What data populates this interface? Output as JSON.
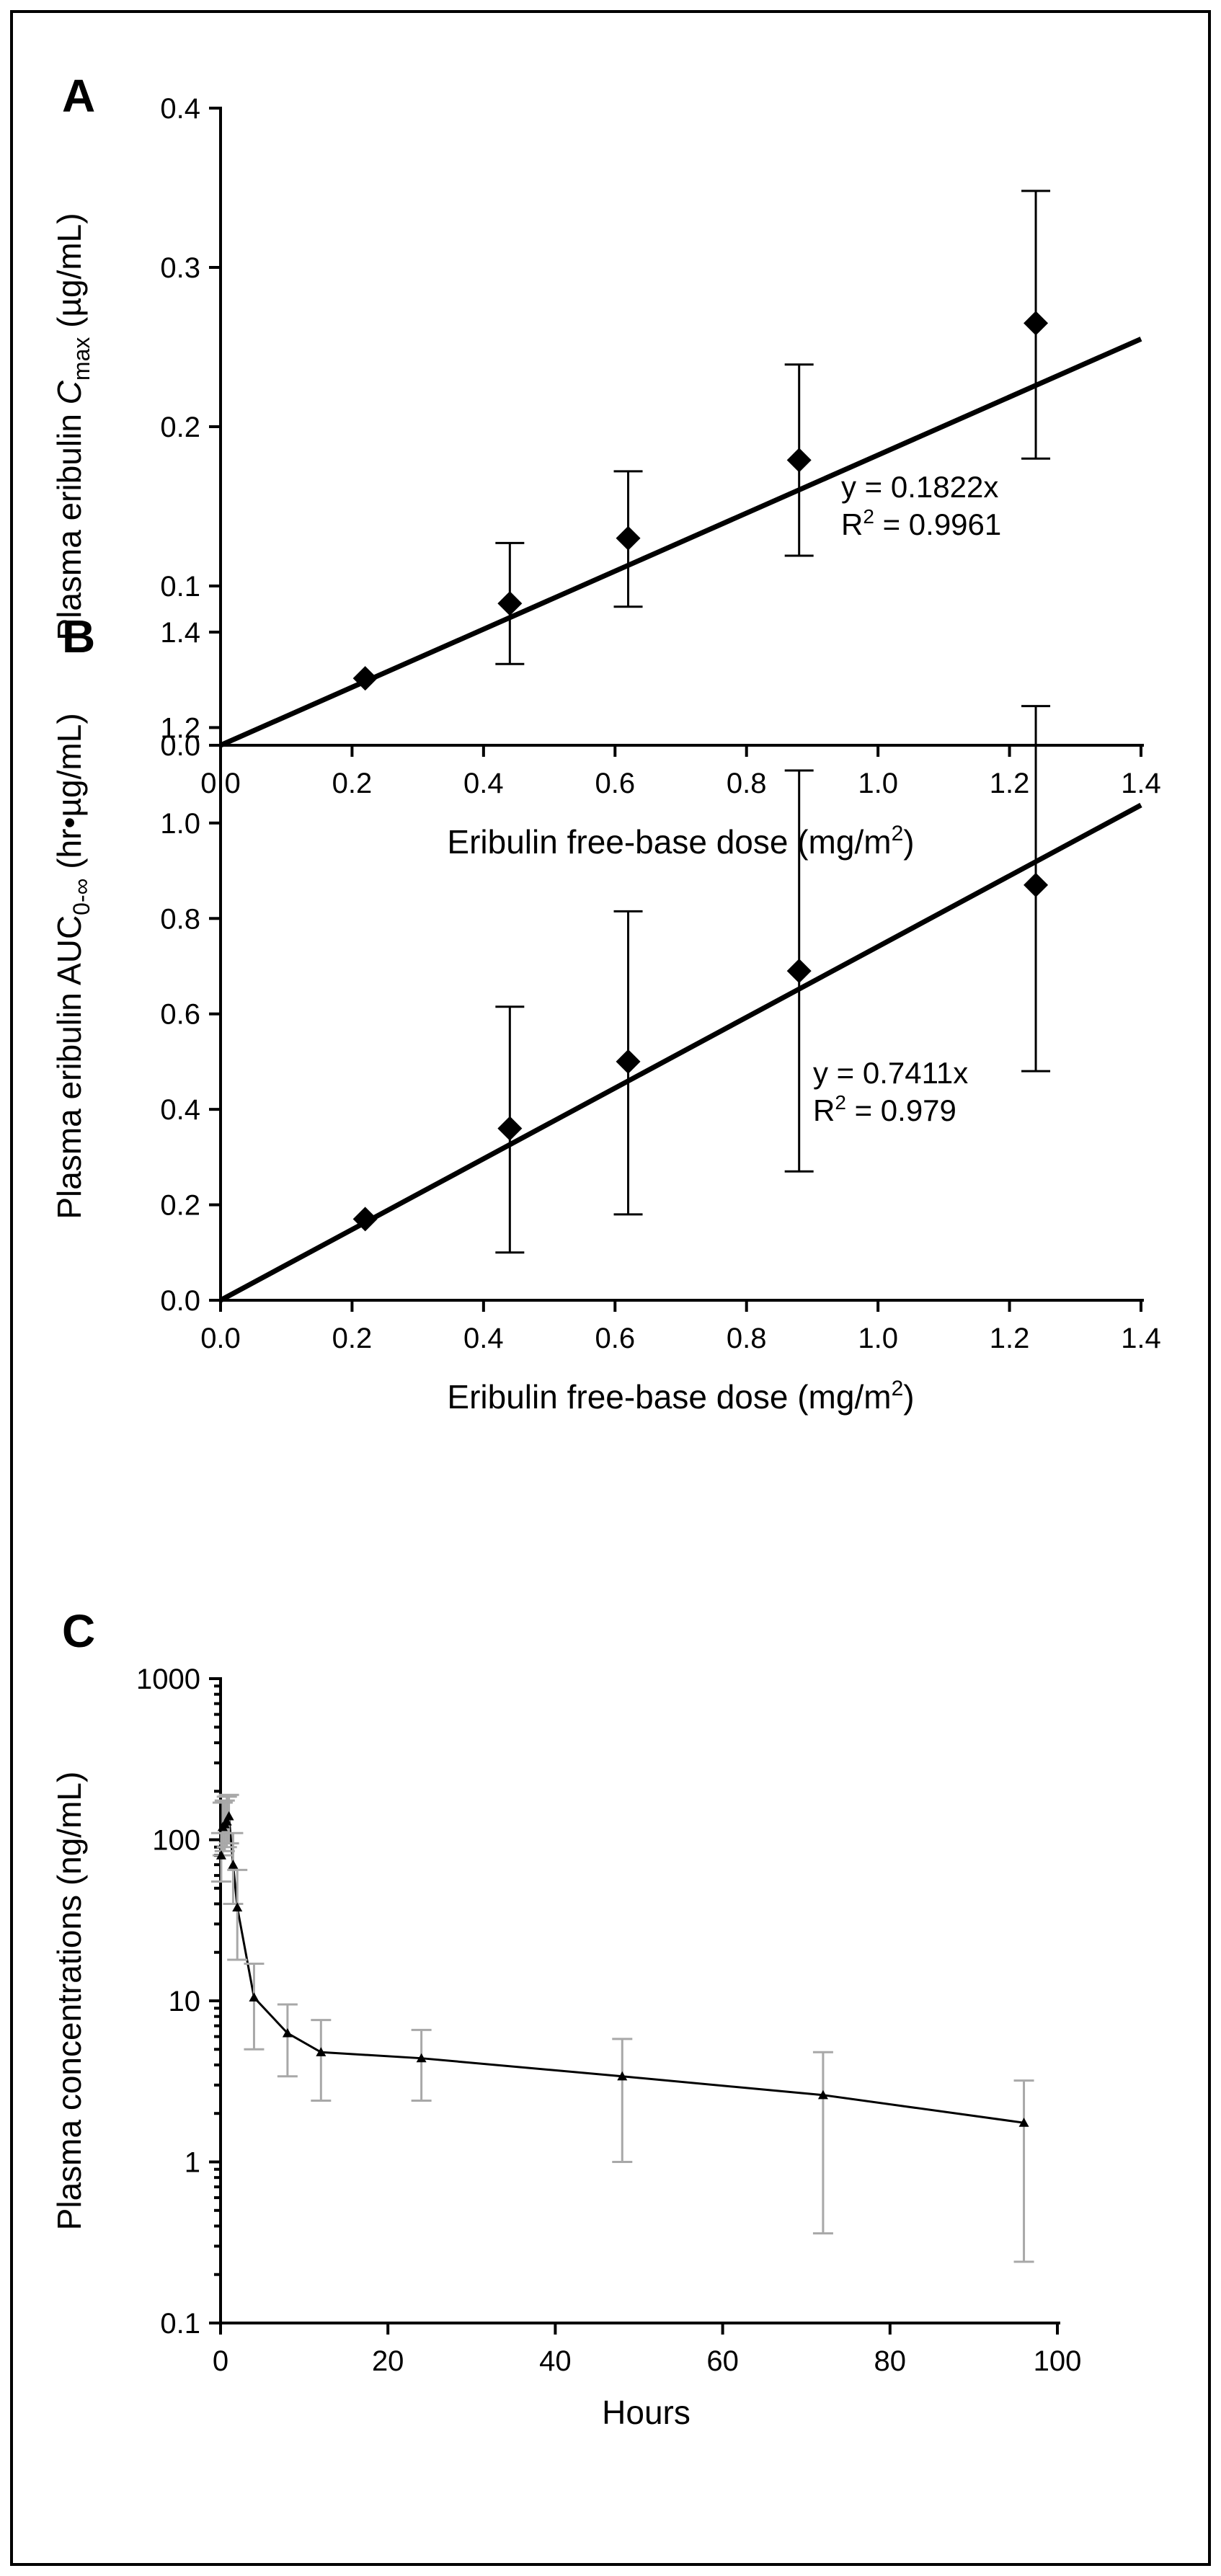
{
  "chart_data": [
    {
      "panel": "A",
      "type": "scatter",
      "xlabel": "Eribulin free-base dose (mg/m²)",
      "ylabel": "Plasma eribulin Cmax (µg/mL)",
      "ylabel_parts": {
        "pre": "Plasma eribulin ",
        "italic": "C",
        "sub": "max",
        "post": " (µg/mL)"
      },
      "xlim": [
        0,
        1.4
      ],
      "ylim": [
        0,
        0.4
      ],
      "xticks": [
        0.0,
        0.2,
        0.4,
        0.6,
        0.8,
        1.0,
        1.2,
        1.4
      ],
      "yticks": [
        0.0,
        0.1,
        0.2,
        0.3,
        0.4
      ],
      "xtick_labels": [
        "0.0",
        "0.2",
        "0.4",
        "0.6",
        "0.8",
        "1.0",
        "1.2",
        "1.4"
      ],
      "ytick_labels": [
        "0.0",
        "0.1",
        "0.2",
        "0.3",
        "0.4"
      ],
      "x": [
        0.22,
        0.44,
        0.62,
        0.88,
        1.24
      ],
      "y": [
        0.042,
        0.089,
        0.13,
        0.179,
        0.265
      ],
      "err_low": [
        0.042,
        0.051,
        0.087,
        0.119,
        0.18
      ],
      "err_high": [
        0.042,
        0.127,
        0.172,
        0.239,
        0.348
      ],
      "fit": {
        "slope": 0.1822,
        "equation": "y = 0.1822x",
        "r2_prefix": "R",
        "r2_exp": "2",
        "r2_value": " = 0.9961"
      }
    },
    {
      "panel": "B",
      "type": "scatter",
      "xlabel": "Eribulin free-base dose (mg/m²)",
      "ylabel": "Plasma eribulin AUC0-∞ (hr•µg/mL)",
      "ylabel_parts": {
        "pre": "Plasma eribulin AUC",
        "sub": "0-∞",
        "post": " (hr•µg/mL)"
      },
      "xlim": [
        0,
        1.4
      ],
      "ylim": [
        0,
        1.4
      ],
      "xticks": [
        0.0,
        0.2,
        0.4,
        0.6,
        0.8,
        1.0,
        1.2,
        1.4
      ],
      "yticks": [
        0.0,
        0.2,
        0.4,
        0.6,
        0.8,
        1.0,
        1.2,
        1.4
      ],
      "xtick_labels": [
        "0.0",
        "0.2",
        "0.4",
        "0.6",
        "0.8",
        "1.0",
        "1.2",
        "1.4"
      ],
      "ytick_labels": [
        "0.0",
        "0.2",
        "0.4",
        "0.6",
        "0.8",
        "1.0",
        "1.2",
        "1.4"
      ],
      "x": [
        0.22,
        0.44,
        0.62,
        0.88,
        1.24
      ],
      "y": [
        0.17,
        0.36,
        0.5,
        0.69,
        0.87
      ],
      "err_low": [
        0.17,
        0.1,
        0.18,
        0.27,
        0.48
      ],
      "err_high": [
        0.17,
        0.615,
        0.815,
        1.11,
        1.245
      ],
      "fit": {
        "slope": 0.7411,
        "equation": "y = 0.7411x",
        "r2_prefix": "R",
        "r2_exp": "2",
        "r2_value": " = 0.979"
      }
    },
    {
      "panel": "C",
      "type": "line",
      "yscale": "log",
      "xlabel": "Hours",
      "ylabel": "Plasma concentrations (ng/mL)",
      "xlim": [
        0,
        100
      ],
      "ylim": [
        0.1,
        1000
      ],
      "xticks": [
        0,
        20,
        40,
        60,
        80,
        100
      ],
      "yticks": [
        0.1,
        1,
        10,
        100,
        1000
      ],
      "xtick_labels": [
        "0",
        "20",
        "40",
        "60",
        "80",
        "100"
      ],
      "ytick_labels": [
        "0.1",
        "1",
        "10",
        "100",
        "1000"
      ],
      "x": [
        0.08,
        0.25,
        0.5,
        0.75,
        1,
        1.5,
        2,
        4,
        8,
        12,
        24,
        48,
        72,
        96
      ],
      "y": [
        80,
        120,
        125,
        130,
        140,
        70,
        38,
        10.5,
        6.3,
        4.8,
        4.4,
        3.4,
        2.6,
        1.75
      ],
      "err_low": [
        55,
        80,
        85,
        90,
        95,
        40,
        18,
        5.0,
        3.4,
        2.4,
        2.4,
        1.0,
        0.36,
        0.24
      ],
      "err_high": [
        110,
        170,
        175,
        185,
        190,
        110,
        65,
        17,
        9.5,
        7.6,
        6.6,
        5.8,
        4.8,
        3.2
      ]
    }
  ]
}
